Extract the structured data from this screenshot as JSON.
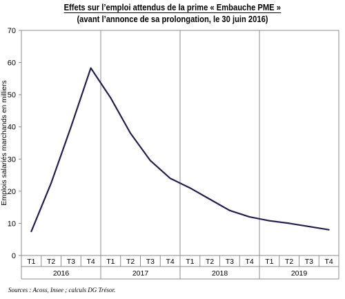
{
  "chart_data": {
    "type": "line",
    "title": "Effets sur l’emploi attendus de la prime « Embauche PME »",
    "subtitle": "(avant l’annonce de sa prolongation, le 30 juin 2016)",
    "ylabel": "Emplois salariés marchands en milliers",
    "xlabel": "",
    "ylim": [
      0,
      70
    ],
    "yticks": [
      0,
      10,
      20,
      30,
      40,
      50,
      60,
      70
    ],
    "quarters": [
      "T1",
      "T2",
      "T3",
      "T4",
      "T1",
      "T2",
      "T3",
      "T4",
      "T1",
      "T2",
      "T3",
      "T4",
      "T1",
      "T2",
      "T3",
      "T4"
    ],
    "years": [
      "2016",
      "2017",
      "2018",
      "2019"
    ],
    "series": [
      {
        "values": [
          7.5,
          22.5,
          40,
          58.3,
          49,
          38,
          29.5,
          24,
          21,
          17.5,
          14,
          12,
          10.8,
          10,
          9,
          8
        ]
      }
    ],
    "line_color": "#231f4c",
    "grid": false
  },
  "source": "Sources : Acoss, Insee ; calculs DG Trésor."
}
